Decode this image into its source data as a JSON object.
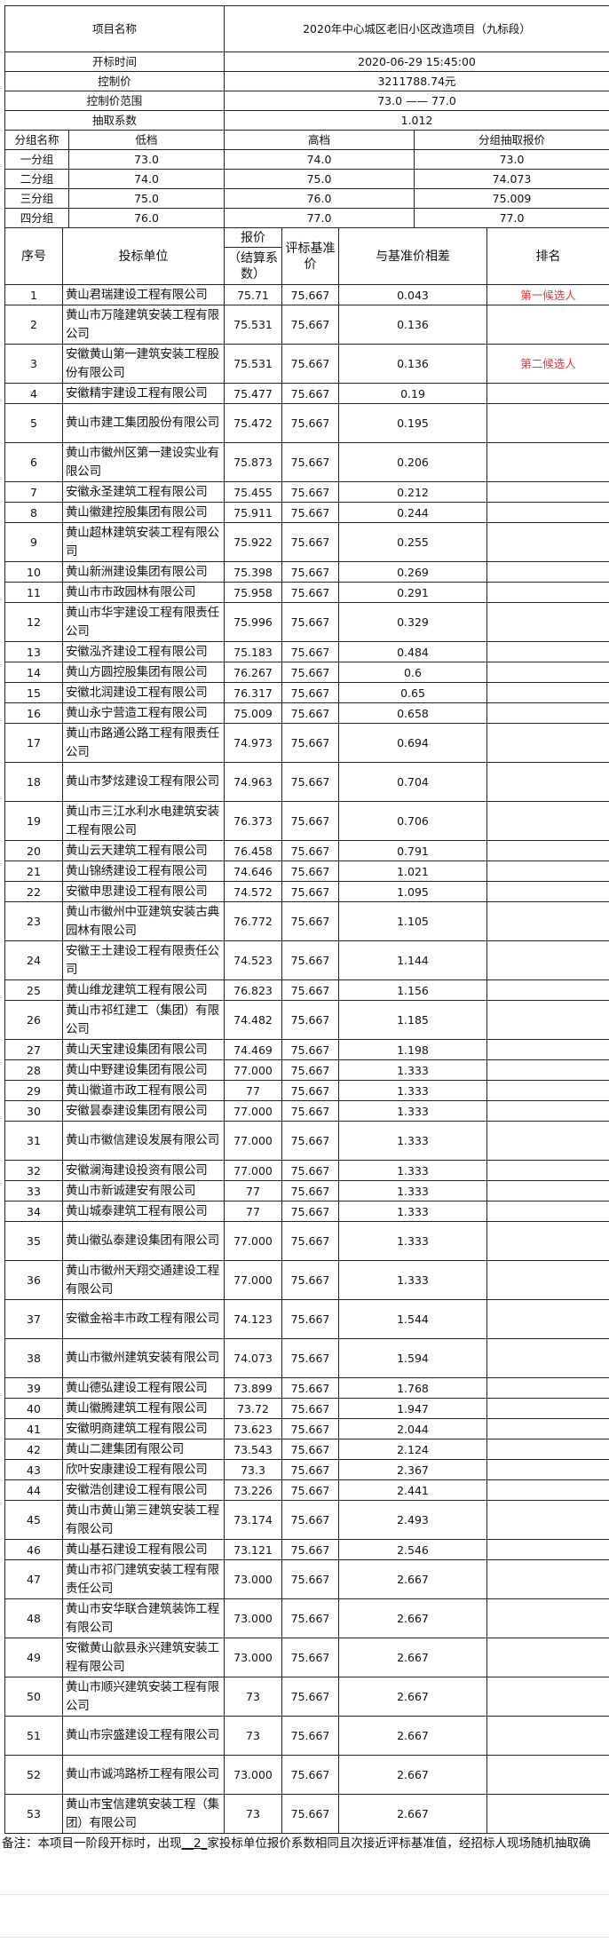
{
  "summary": {
    "project_label": "项目名称",
    "project_value": "2020年中心城区老旧小区改造项目（九标段）",
    "open_time_label": "开标时间",
    "open_time_value": "2020-06-29 15:45:00",
    "control_price_label": "控制价",
    "control_price_value": "3211788.74元",
    "range_label": "控制价范围",
    "range_value": "73.0 —— 77.0",
    "coef_label": "抽取系数",
    "coef_value": "1.012"
  },
  "groups": {
    "headers": [
      "分组名称",
      "低档",
      "高档",
      "分组抽取报价"
    ],
    "rows": [
      [
        "一分组",
        "73.0",
        "74.0",
        "73.0"
      ],
      [
        "二分组",
        "74.0",
        "75.0",
        "74.073"
      ],
      [
        "三分组",
        "75.0",
        "76.0",
        "75.009"
      ],
      [
        "四分组",
        "76.0",
        "77.0",
        "77.0"
      ]
    ]
  },
  "columns": {
    "no": "序号",
    "bidder": "投标单位",
    "price_top": "报价",
    "price_sub": "（结算系数）",
    "base": "评标基准价",
    "diff": "与基准价相差",
    "rank": "排名"
  },
  "rank_color": "#e8383d",
  "rows": [
    [
      "1",
      "黄山君瑞建设工程有限公司",
      "75.71",
      "75.667",
      "0.043",
      "第一候选人"
    ],
    [
      "2",
      "黄山市万隆建筑安装工程有限公司",
      "75.531",
      "75.667",
      "0.136",
      ""
    ],
    [
      "3",
      "安徽黄山第一建筑安装工程股份有限公司",
      "75.531",
      "75.667",
      "0.136",
      "第二候选人"
    ],
    [
      "4",
      "安徽精宇建设工程有限公司",
      "75.477",
      "75.667",
      "0.19",
      ""
    ],
    [
      "5",
      "黄山市建工集团股份有限公司",
      "75.472",
      "75.667",
      "0.195",
      ""
    ],
    [
      "6",
      "黄山市徽州区第一建设实业有限公司",
      "75.873",
      "75.667",
      "0.206",
      ""
    ],
    [
      "7",
      "安徽永圣建筑工程有限公司",
      "75.455",
      "75.667",
      "0.212",
      ""
    ],
    [
      "8",
      "黄山徽建控股集团有限公司",
      "75.911",
      "75.667",
      "0.244",
      ""
    ],
    [
      "9",
      "黄山超林建筑安装工程有限公司",
      "75.922",
      "75.667",
      "0.255",
      ""
    ],
    [
      "10",
      "黄山新洲建设集团有限公司",
      "75.398",
      "75.667",
      "0.269",
      ""
    ],
    [
      "11",
      "黄山市市政园林有限公司",
      "75.958",
      "75.667",
      "0.291",
      ""
    ],
    [
      "12",
      "黄山市华宇建设工程有限责任公司",
      "75.996",
      "75.667",
      "0.329",
      ""
    ],
    [
      "13",
      "安徽泓齐建设工程有限公司",
      "75.183",
      "75.667",
      "0.484",
      ""
    ],
    [
      "14",
      "黄山方圆控股集团有限公司",
      "76.267",
      "75.667",
      "0.6",
      ""
    ],
    [
      "15",
      "安徽北润建设工程有限公司",
      "76.317",
      "75.667",
      "0.65",
      ""
    ],
    [
      "16",
      "黄山永宁营造工程有限公司",
      "75.009",
      "75.667",
      "0.658",
      ""
    ],
    [
      "17",
      "黄山市路通公路工程有限责任公司",
      "74.973",
      "75.667",
      "0.694",
      ""
    ],
    [
      "18",
      "黄山市梦炫建设工程有限公司",
      "74.963",
      "75.667",
      "0.704",
      ""
    ],
    [
      "19",
      "黄山市三江水利水电建筑安装工程有限公司",
      "76.373",
      "75.667",
      "0.706",
      ""
    ],
    [
      "20",
      "黄山云天建筑工程有限公司",
      "76.458",
      "75.667",
      "0.791",
      ""
    ],
    [
      "21",
      "黄山锦绣建设工程有限公司",
      "74.646",
      "75.667",
      "1.021",
      ""
    ],
    [
      "22",
      "安徽申思建设工程有限公司",
      "74.572",
      "75.667",
      "1.095",
      ""
    ],
    [
      "23",
      "黄山市徽州中亚建筑安装古典园林有限公司",
      "76.772",
      "75.667",
      "1.105",
      ""
    ],
    [
      "24",
      "安徽王土建设工程有限责任公司",
      "74.523",
      "75.667",
      "1.144",
      ""
    ],
    [
      "25",
      "黄山维龙建筑工程有限公司",
      "76.823",
      "75.667",
      "1.156",
      ""
    ],
    [
      "26",
      "黄山市祁红建工（集团）有限公司",
      "74.482",
      "75.667",
      "1.185",
      ""
    ],
    [
      "27",
      "黄山天宝建设集团有限公司",
      "74.469",
      "75.667",
      "1.198",
      ""
    ],
    [
      "28",
      "黄山中野建设集团有限公司",
      "77.000",
      "75.667",
      "1.333",
      ""
    ],
    [
      "29",
      "黄山徽道市政工程有限公司",
      "77",
      "75.667",
      "1.333",
      ""
    ],
    [
      "30",
      "安徽昙泰建设集团有限公司",
      "77.000",
      "75.667",
      "1.333",
      ""
    ],
    [
      "31",
      "黄山市徽信建设发展有限公司",
      "77.000",
      "75.667",
      "1.333",
      ""
    ],
    [
      "32",
      "安徽澜海建设投资有限公司",
      "77.000",
      "75.667",
      "1.333",
      ""
    ],
    [
      "33",
      "黄山市新诚建安有限公司",
      "77",
      "75.667",
      "1.333",
      ""
    ],
    [
      "34",
      "黄山城泰建筑工程有限公司",
      "77",
      "75.667",
      "1.333",
      ""
    ],
    [
      "35",
      "黄山徽弘泰建设集团有限公司",
      "77.000",
      "75.667",
      "1.333",
      ""
    ],
    [
      "36",
      "黄山市徽州天翔交通建设工程有限公司",
      "77.000",
      "75.667",
      "1.333",
      ""
    ],
    [
      "37",
      "安徽金裕丰市政工程有限公司",
      "74.123",
      "75.667",
      "1.544",
      ""
    ],
    [
      "38",
      "黄山市徽州建筑安装有限公司",
      "74.073",
      "75.667",
      "1.594",
      ""
    ],
    [
      "39",
      "黄山德弘建设工程有限公司",
      "73.899",
      "75.667",
      "1.768",
      ""
    ],
    [
      "40",
      "黄山徽腾建筑工程有限公司",
      "73.72",
      "75.667",
      "1.947",
      ""
    ],
    [
      "41",
      "安徽明商建筑工程有限公司",
      "73.623",
      "75.667",
      "2.044",
      ""
    ],
    [
      "42",
      "黄山二建集团有限公司",
      "73.543",
      "75.667",
      "2.124",
      ""
    ],
    [
      "43",
      "欣叶安康建设工程有限公司",
      "73.3",
      "75.667",
      "2.367",
      ""
    ],
    [
      "44",
      "安徽浩创建设工程有限公司",
      "73.226",
      "75.667",
      "2.441",
      ""
    ],
    [
      "45",
      "黄山市黄山第三建筑安装工程有限公司",
      "73.174",
      "75.667",
      "2.493",
      ""
    ],
    [
      "46",
      "黄山基石建设工程有限公司",
      "73.121",
      "75.667",
      "2.546",
      ""
    ],
    [
      "47",
      "黄山市祁门建筑安装工程有限责任公司",
      "73.000",
      "75.667",
      "2.667",
      ""
    ],
    [
      "48",
      "黄山市安华联合建筑装饰工程有限公司",
      "73.000",
      "75.667",
      "2.667",
      ""
    ],
    [
      "49",
      "安徽黄山歙县永兴建筑安装工程有限公司",
      "73.000",
      "75.667",
      "2.667",
      ""
    ],
    [
      "50",
      "黄山市顺兴建筑安装工程有限公司",
      "73",
      "75.667",
      "2.667",
      ""
    ],
    [
      "51",
      "黄山市宗盛建设工程有限公司",
      "73",
      "75.667",
      "2.667",
      ""
    ],
    [
      "52",
      "黄山市诚鸿路桥工程有限公司",
      "73.000",
      "75.667",
      "2.667",
      ""
    ],
    [
      "53",
      "黄山市宝信建筑安装工程（集团）有限公司",
      "73",
      "75.667",
      "2.667",
      ""
    ]
  ],
  "note": {
    "prefix": "备注：本项目一阶段开标时，出现",
    "count": "__2_",
    "suffix": "家投标单位报价系数相同且次接近评标基准值，经招标人现场随机抽取确"
  }
}
